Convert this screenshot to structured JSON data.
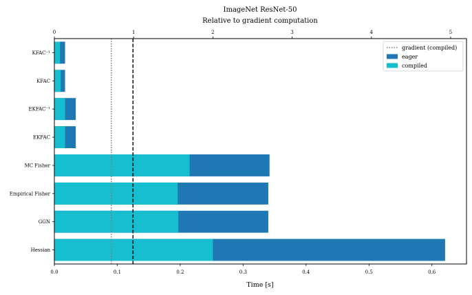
{
  "chart_data": {
    "type": "bar",
    "orientation": "horizontal",
    "stacked": "overlay",
    "title": "ImageNet ResNet-50",
    "subtitle": "Relative to gradient computation",
    "xlabel": "Time [s]",
    "xlim": [
      0,
      0.655
    ],
    "x_ticks": [
      0.0,
      0.1,
      0.2,
      0.3,
      0.4,
      0.5,
      0.6
    ],
    "x_tick_labels": [
      "0.0",
      "0.1",
      "0.2",
      "0.3",
      "0.4",
      "0.5",
      "0.6"
    ],
    "top_xlim": [
      0,
      5.2
    ],
    "top_ticks": [
      0,
      1,
      2,
      3,
      4,
      5
    ],
    "top_tick_labels": [
      "0",
      "1",
      "2",
      "3",
      "4",
      "5"
    ],
    "categories": [
      "KFAC⁻¹",
      "KFAC",
      "EKFAC⁻¹",
      "EKFAC",
      "MC Fisher",
      "Empirical Fisher",
      "GGN",
      "Hessian"
    ],
    "series": [
      {
        "name": "eager",
        "color": "#1f77b4",
        "values": [
          0.017,
          0.017,
          0.034,
          0.034,
          0.342,
          0.34,
          0.34,
          0.621
        ]
      },
      {
        "name": "compiled",
        "color": "#17becf",
        "values": [
          0.009,
          0.01,
          0.017,
          0.017,
          0.215,
          0.196,
          0.197,
          0.252
        ]
      }
    ],
    "reference_lines": [
      {
        "name": "gradient (compiled)",
        "x": 0.0905,
        "style": "dotted",
        "color": "#808080"
      },
      {
        "name": "gradient (eager)",
        "x": 0.125,
        "style": "dashed",
        "color": "#000000"
      }
    ],
    "legend": {
      "position": "top-right",
      "entries": [
        "gradient (compiled)",
        "eager",
        "compiled"
      ]
    },
    "grid": false
  }
}
